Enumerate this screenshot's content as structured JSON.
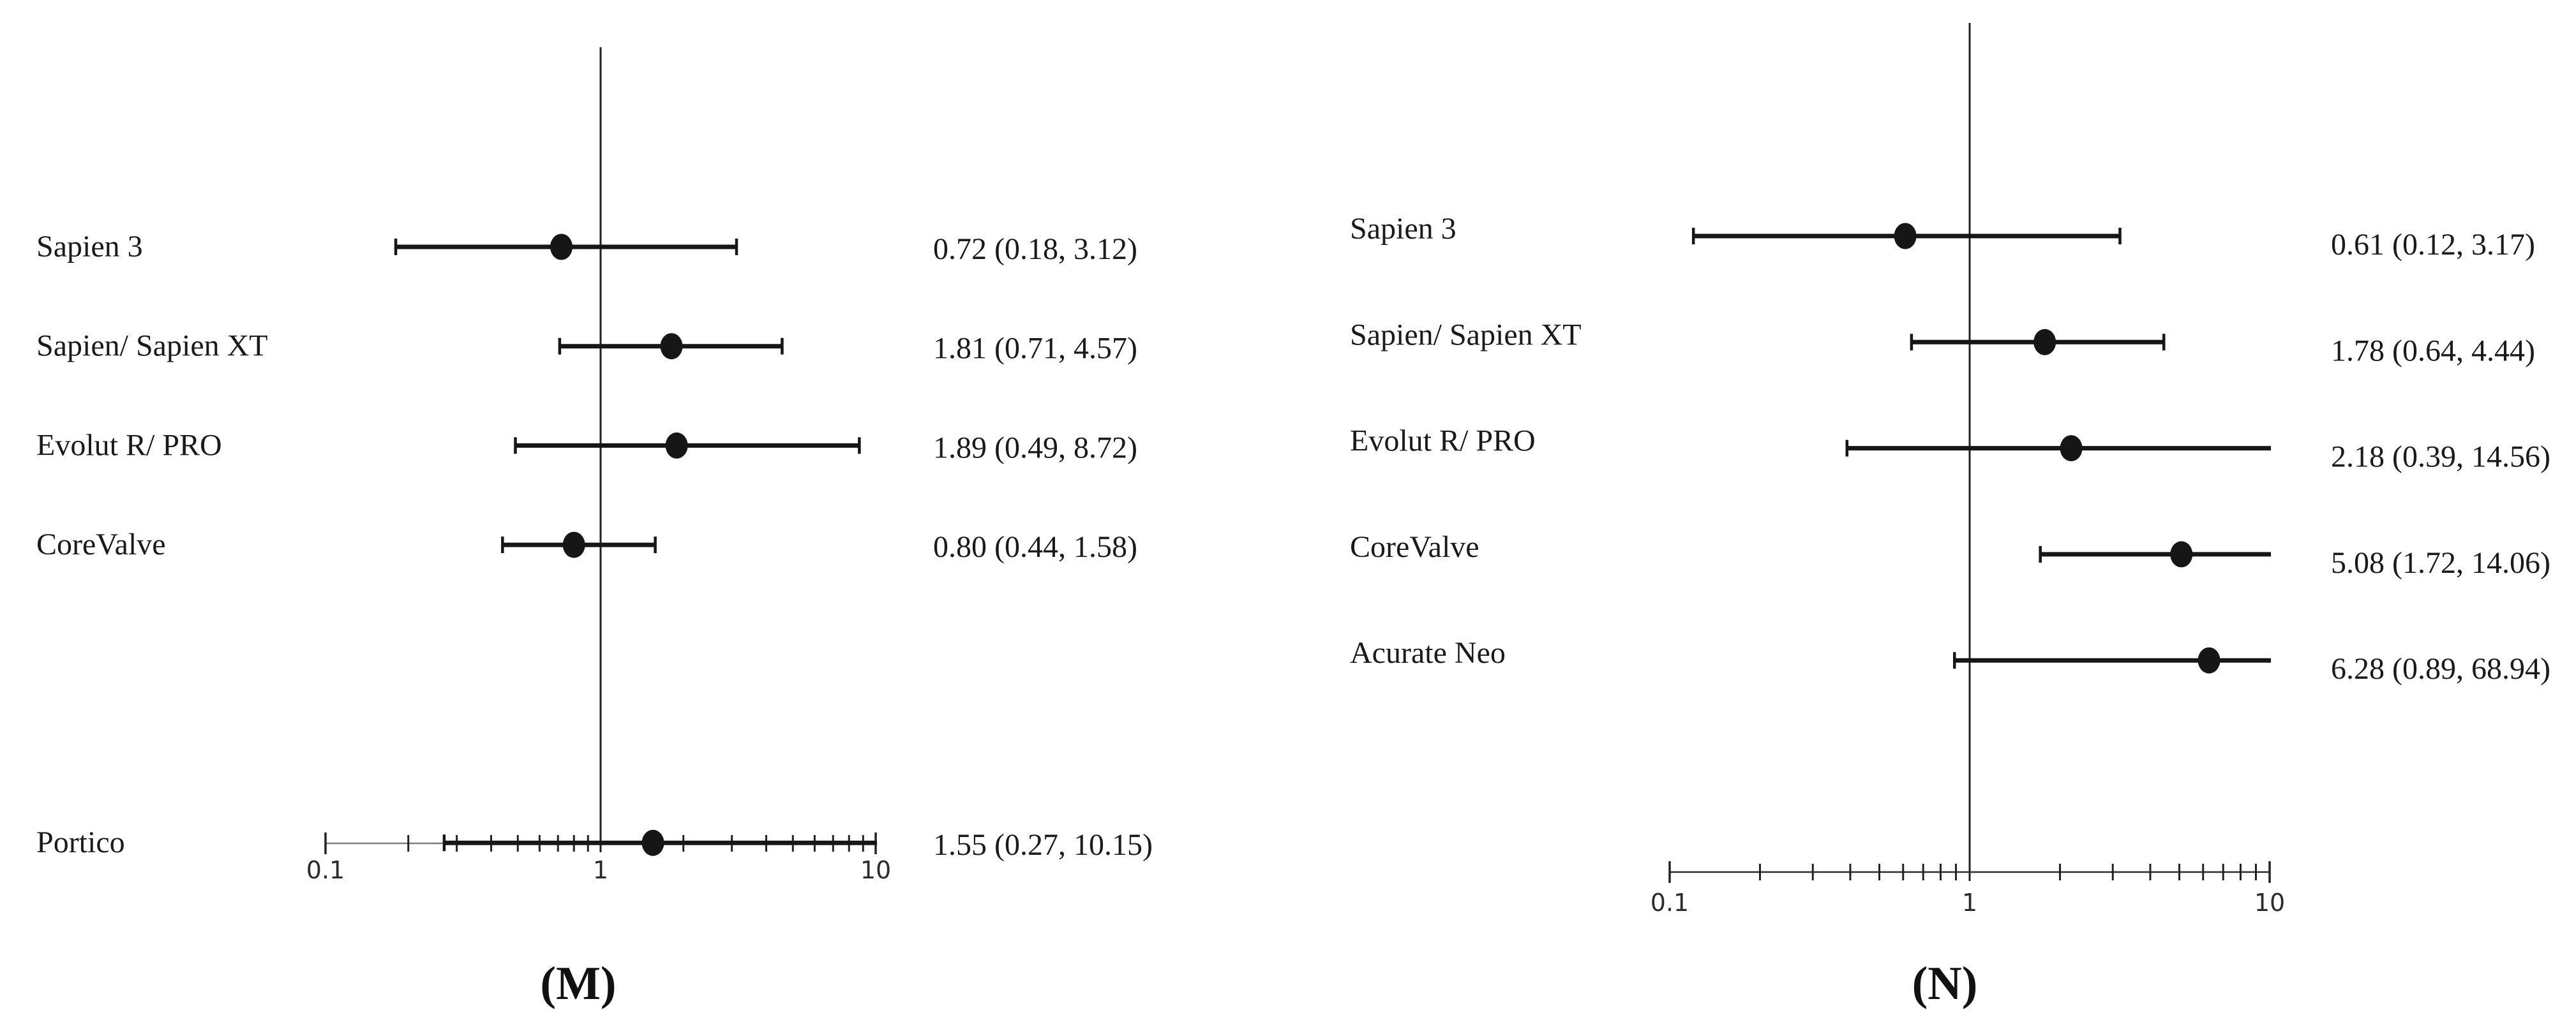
{
  "figure": {
    "background": "#ffffff",
    "description": "Two forest plots of transcatheter heart valve odds ratios with 95% confidence intervals on a log10 x-axis"
  },
  "colors": {
    "ink": "#161616",
    "m_axis_line": "#7d7d7d",
    "n_axis_line": "#2b2b2b",
    "tick": "#222222",
    "ref_line": "#222222"
  },
  "chart_data": [
    {
      "type": "scatter",
      "variant": "forest-plot",
      "panel": "M",
      "caption": "(M)",
      "xscale": "log10",
      "xlim": [
        0.1,
        10
      ],
      "reference_line": 1,
      "grid": false,
      "legend": "none",
      "axis": {
        "tick_values": [
          0.1,
          1,
          10
        ],
        "tick_labels": [
          "0.1",
          "1",
          "10"
        ]
      },
      "rows": [
        {
          "label": "Sapien 3",
          "estimate": 0.72,
          "ci_lower": 0.18,
          "ci_upper": 3.12,
          "value_text": "0.72 (0.18, 3.12)",
          "gap_before": false
        },
        {
          "label": "Sapien/ Sapien XT",
          "estimate": 1.81,
          "ci_lower": 0.71,
          "ci_upper": 4.57,
          "value_text": "1.81 (0.71, 4.57)",
          "gap_before": false
        },
        {
          "label": "Evolut R/ PRO",
          "estimate": 1.89,
          "ci_lower": 0.49,
          "ci_upper": 8.72,
          "value_text": "1.89 (0.49, 8.72)",
          "gap_before": false
        },
        {
          "label": "CoreValve",
          "estimate": 0.8,
          "ci_lower": 0.44,
          "ci_upper": 1.58,
          "value_text": "0.80 (0.44, 1.58)",
          "gap_before": false
        },
        {
          "label": "Portico",
          "estimate": 1.55,
          "ci_lower": 0.27,
          "ci_upper": 10.15,
          "value_text": "1.55 (0.27, 10.15)",
          "gap_before": true
        }
      ]
    },
    {
      "type": "scatter",
      "variant": "forest-plot",
      "panel": "N",
      "caption": "(N)",
      "xscale": "log10",
      "xlim": [
        0.1,
        10
      ],
      "reference_line": 1,
      "grid": false,
      "legend": "none",
      "axis": {
        "tick_values": [
          0.1,
          1,
          10
        ],
        "tick_labels": [
          "0.1",
          "1",
          "10"
        ]
      },
      "rows": [
        {
          "label": "Sapien 3",
          "estimate": 0.61,
          "ci_lower": 0.12,
          "ci_upper": 3.17,
          "value_text": "0.61 (0.12, 3.17)",
          "gap_before": false
        },
        {
          "label": "Sapien/ Sapien XT",
          "estimate": 1.78,
          "ci_lower": 0.64,
          "ci_upper": 4.44,
          "value_text": "1.78 (0.64, 4.44)",
          "gap_before": false
        },
        {
          "label": "Evolut R/ PRO",
          "estimate": 2.18,
          "ci_lower": 0.39,
          "ci_upper": 14.56,
          "value_text": "2.18 (0.39, 14.56)",
          "gap_before": false
        },
        {
          "label": "CoreValve",
          "estimate": 5.08,
          "ci_lower": 1.72,
          "ci_upper": 14.06,
          "value_text": "5.08 (1.72, 14.06)",
          "gap_before": false
        },
        {
          "label": "Acurate Neo",
          "estimate": 6.28,
          "ci_lower": 0.89,
          "ci_upper": 68.94,
          "value_text": "6.28 (0.89, 68.94)",
          "gap_before": false
        }
      ]
    }
  ]
}
